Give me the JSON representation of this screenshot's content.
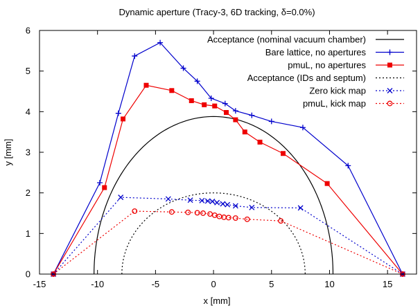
{
  "chart_data": {
    "type": "line",
    "title": "Dynamic aperture (Tracy-3, 6D tracking, δ=0.0%)",
    "xlabel": "x [mm]",
    "ylabel": "y [mm]",
    "xlim": [
      -15,
      17.5
    ],
    "ylim": [
      0,
      6
    ],
    "xticks": [
      -15,
      -10,
      -5,
      0,
      5,
      10,
      15
    ],
    "yticks": [
      0,
      1,
      2,
      3,
      4,
      5,
      6
    ],
    "grid": false,
    "legend_position": "top-right",
    "series": [
      {
        "name": "Acceptance (nominal vacuum chamber)",
        "kind": "semi-ellipse",
        "a": 10.3,
        "b": 3.88,
        "color": "#000000",
        "dash": "solid",
        "marker": "none"
      },
      {
        "name": "Bare lattice, no apertures",
        "color": "#0000cc",
        "dash": "solid",
        "marker": "plus",
        "x": [
          -13.8,
          -9.8,
          -8.2,
          -6.8,
          -4.6,
          -2.6,
          -1.4,
          -0.2,
          1.0,
          1.9,
          3.3,
          5.0,
          7.7,
          11.6,
          16.3
        ],
        "y": [
          0.0,
          2.25,
          3.96,
          5.37,
          5.7,
          5.07,
          4.75,
          4.33,
          4.2,
          4.02,
          3.91,
          3.76,
          3.61,
          2.67,
          0.0
        ]
      },
      {
        "name": "pmuL, no apertures",
        "color": "#ee0000",
        "dash": "solid",
        "marker": "square",
        "x": [
          -13.8,
          -9.4,
          -7.8,
          -5.8,
          -3.6,
          -1.9,
          -0.8,
          0.1,
          1.1,
          1.9,
          2.7,
          4.0,
          6.0,
          9.8,
          16.3
        ],
        "y": [
          0.0,
          2.13,
          3.82,
          4.65,
          4.52,
          4.27,
          4.17,
          4.14,
          3.98,
          3.8,
          3.5,
          3.25,
          2.97,
          2.23,
          0.0
        ]
      },
      {
        "name": "Acceptance (IDs and septum)",
        "kind": "semi-ellipse",
        "a": 7.9,
        "b": 2.0,
        "color": "#000000",
        "dash": "dotted",
        "marker": "none"
      },
      {
        "name": "Zero kick map",
        "color": "#0000cc",
        "dash": "dotted",
        "marker": "cross",
        "x": [
          -13.8,
          -8.0,
          -3.9,
          -2.0,
          -1.0,
          -0.5,
          -0.1,
          0.3,
          0.8,
          1.2,
          1.9,
          3.3,
          7.5,
          16.3
        ],
        "y": [
          0.0,
          1.89,
          1.85,
          1.82,
          1.81,
          1.8,
          1.79,
          1.76,
          1.73,
          1.71,
          1.68,
          1.64,
          1.63,
          0.0
        ]
      },
      {
        "name": "pmuL, kick map",
        "color": "#ee0000",
        "dash": "dotted",
        "marker": "circle",
        "x": [
          -13.8,
          -6.8,
          -3.6,
          -2.2,
          -1.4,
          -0.9,
          -0.3,
          0.1,
          0.5,
          0.9,
          1.3,
          1.9,
          2.9,
          5.8,
          16.3
        ],
        "y": [
          0.0,
          1.55,
          1.53,
          1.52,
          1.51,
          1.5,
          1.48,
          1.45,
          1.42,
          1.4,
          1.39,
          1.38,
          1.35,
          1.31,
          0.0
        ]
      }
    ]
  }
}
